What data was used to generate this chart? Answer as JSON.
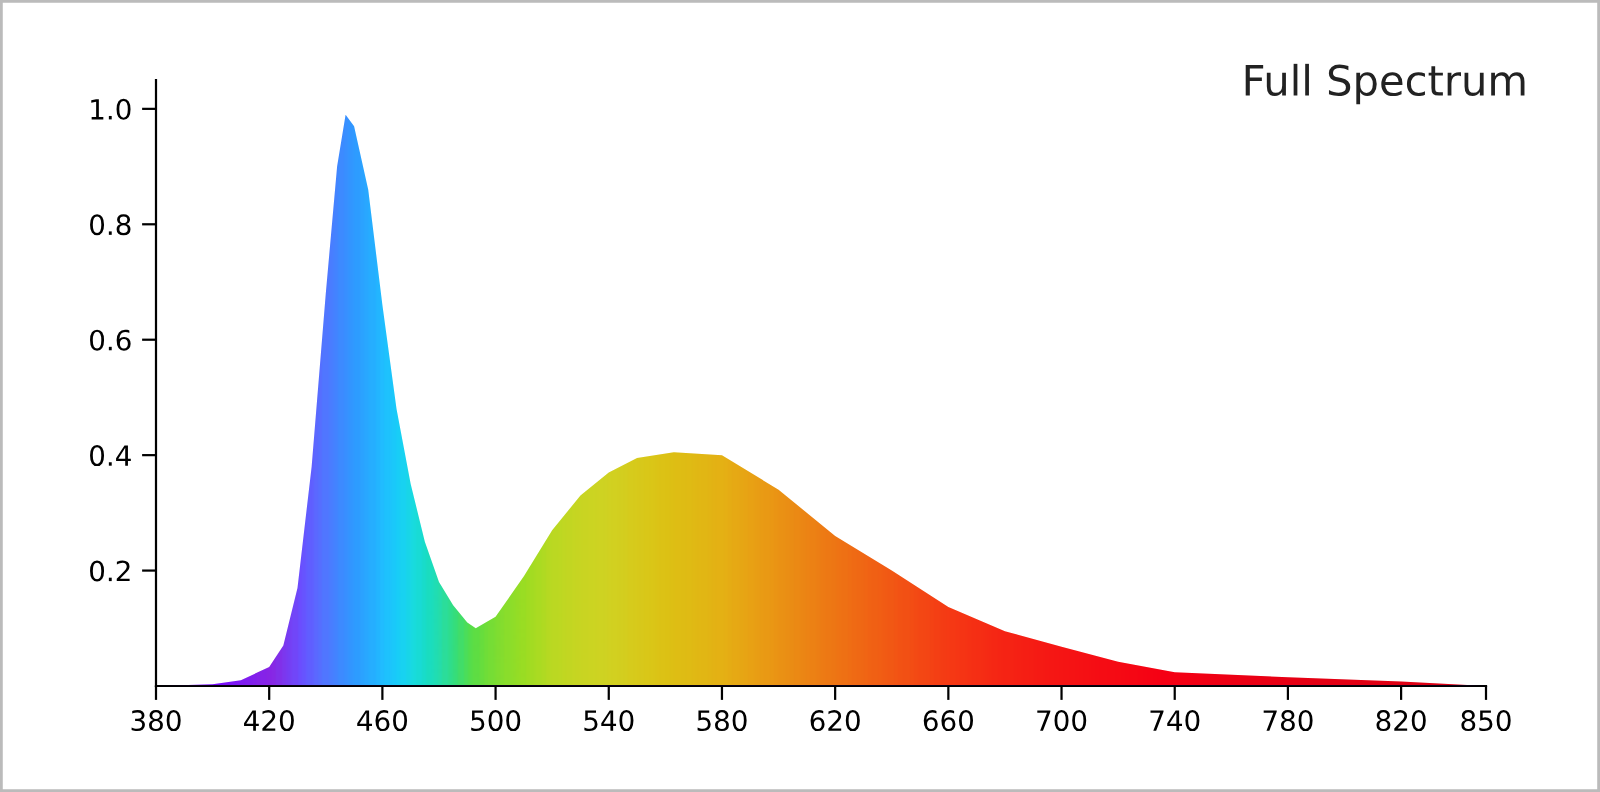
{
  "chart_data": {
    "type": "area",
    "title": "Full Spectrum",
    "x": [
      380,
      400,
      410,
      420,
      425,
      430,
      435,
      440,
      444,
      447,
      450,
      455,
      460,
      465,
      470,
      475,
      480,
      485,
      490,
      493,
      500,
      510,
      520,
      530,
      540,
      550,
      563,
      580,
      600,
      620,
      640,
      660,
      680,
      700,
      720,
      740,
      780,
      820,
      850
    ],
    "series": [
      {
        "values": [
          0,
          0.003,
          0.01,
          0.033,
          0.07,
          0.17,
          0.38,
          0.68,
          0.9,
          0.99,
          0.97,
          0.86,
          0.66,
          0.48,
          0.35,
          0.25,
          0.18,
          0.14,
          0.11,
          0.1,
          0.12,
          0.19,
          0.27,
          0.33,
          0.37,
          0.395,
          0.405,
          0.4,
          0.34,
          0.26,
          0.2,
          0.137,
          0.095,
          0.068,
          0.042,
          0.024,
          0.015,
          0.008,
          0
        ],
        "colors": [
          "#7a00ff",
          "#7a10ff",
          "#8020f0",
          "#8a2be2",
          "#7a40f0",
          "#6a55ff",
          "#5a70ff",
          "#4a85ff",
          "#3a95ff",
          "#30a0ff",
          "#28aaff",
          "#20bbff",
          "#18d0ff",
          "#10e0f8",
          "#10eee0",
          "#10f0c0",
          "#20f0a0",
          "#30f070",
          "#50f040",
          "#60f030",
          "#80f020",
          "#a0f010",
          "#c0ec10",
          "#d0e810",
          "#d8e410",
          "#e0dc08",
          "#e6d000",
          "#eec000",
          "#f4a000",
          "#f88000",
          "#fc6000",
          "#ff4000",
          "#ff2800",
          "#ff1800",
          "#ff0c00",
          "#ff0000",
          "#f00000",
          "#e80000",
          "#e00000"
        ]
      }
    ],
    "xlim": [
      380,
      850
    ],
    "ylim": [
      0,
      1.05
    ],
    "xticks": [
      380,
      420,
      460,
      500,
      540,
      580,
      620,
      660,
      700,
      740,
      780,
      820,
      850
    ],
    "yticks": [
      0.2,
      0.4,
      0.6,
      0.8,
      {
        "value": 1,
        "label": "1.0"
      }
    ],
    "grid": false,
    "legend": false
  }
}
